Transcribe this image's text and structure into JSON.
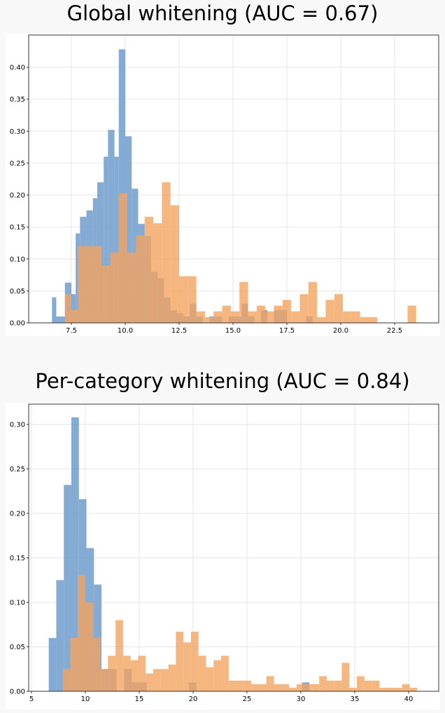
{
  "chart_data": [
    {
      "type": "histogram",
      "title": "Global whitening (AUC = 0.67)",
      "xlabel": "",
      "ylabel": "",
      "xlim": [
        6.0,
        24.0
      ],
      "ylim": [
        0,
        0.45
      ],
      "grid": true,
      "xticks": [
        "7.5",
        "10.0",
        "12.5",
        "15.0",
        "17.5",
        "20.0",
        "22.5"
      ],
      "yticks": [
        "0.00",
        "0.05",
        "0.10",
        "0.15",
        "0.20",
        "0.25",
        "0.30",
        "0.35",
        "0.40"
      ],
      "series": [
        {
          "color": "#6f9ccb",
          "bins": [
            [
              6.6,
              6.8,
              0.04
            ],
            [
              6.8,
              7.0,
              0.01
            ],
            [
              7.0,
              7.2,
              0.01
            ],
            [
              7.2,
              7.5,
              0.063
            ],
            [
              7.5,
              7.7,
              0.045
            ],
            [
              7.7,
              7.9,
              0.14
            ],
            [
              7.9,
              8.2,
              0.166
            ],
            [
              8.2,
              8.5,
              0.176
            ],
            [
              8.5,
              8.7,
              0.195
            ],
            [
              8.7,
              9.0,
              0.22
            ],
            [
              9.0,
              9.2,
              0.26
            ],
            [
              9.2,
              9.5,
              0.302
            ],
            [
              9.5,
              9.7,
              0.26
            ],
            [
              9.7,
              10.0,
              0.428
            ],
            [
              10.0,
              10.3,
              0.292
            ],
            [
              10.3,
              10.6,
              0.21
            ],
            [
              10.6,
              10.9,
              0.155
            ],
            [
              10.9,
              11.2,
              0.136
            ],
            [
              11.2,
              11.5,
              0.08
            ],
            [
              11.5,
              11.8,
              0.07
            ],
            [
              11.8,
              12.1,
              0.04
            ],
            [
              12.1,
              12.4,
              0.02
            ],
            [
              12.4,
              12.7,
              0.015
            ],
            [
              12.7,
              13.0,
              0.01
            ],
            [
              13.0,
              13.3,
              0.03
            ],
            [
              13.3,
              13.6,
              0.01
            ],
            [
              13.9,
              14.2,
              0.01
            ],
            [
              14.2,
              14.5,
              0.01
            ],
            [
              14.8,
              15.1,
              0.01
            ],
            [
              15.1,
              15.4,
              0.01
            ],
            [
              15.4,
              15.7,
              0.03
            ],
            [
              15.7,
              16.0,
              0.01
            ],
            [
              16.3,
              16.6,
              0.02
            ],
            [
              16.9,
              17.2,
              0.02
            ],
            [
              17.2,
              17.5,
              0.02
            ],
            [
              18.4,
              18.7,
              0.01
            ]
          ]
        },
        {
          "color": "#f4a460",
          "bins": [
            [
              7.2,
              7.5,
              0.045
            ],
            [
              7.5,
              7.8,
              0.02
            ],
            [
              7.8,
              8.2,
              0.12
            ],
            [
              8.2,
              8.5,
              0.12
            ],
            [
              8.5,
              8.9,
              0.12
            ],
            [
              8.9,
              9.3,
              0.09
            ],
            [
              9.3,
              9.7,
              0.11
            ],
            [
              9.7,
              10.1,
              0.203
            ],
            [
              10.1,
              10.5,
              0.11
            ],
            [
              10.5,
              10.9,
              0.137
            ],
            [
              10.9,
              11.3,
              0.166
            ],
            [
              11.3,
              11.7,
              0.156
            ],
            [
              11.7,
              12.1,
              0.22
            ],
            [
              12.1,
              12.5,
              0.184
            ],
            [
              12.5,
              12.9,
              0.073
            ],
            [
              12.9,
              13.3,
              0.073
            ],
            [
              13.3,
              13.7,
              0.018
            ],
            [
              13.7,
              14.1,
              0.009
            ],
            [
              14.1,
              14.5,
              0.018
            ],
            [
              14.5,
              14.9,
              0.027
            ],
            [
              14.9,
              15.3,
              0.018
            ],
            [
              15.3,
              15.7,
              0.064
            ],
            [
              15.7,
              16.1,
              0.018
            ],
            [
              16.1,
              16.5,
              0.027
            ],
            [
              16.5,
              16.9,
              0.018
            ],
            [
              16.9,
              17.3,
              0.027
            ],
            [
              17.3,
              17.7,
              0.036
            ],
            [
              17.7,
              18.1,
              0.018
            ],
            [
              18.1,
              18.5,
              0.045
            ],
            [
              18.5,
              18.9,
              0.064
            ],
            [
              18.9,
              19.3,
              0.009
            ],
            [
              19.3,
              19.7,
              0.036
            ],
            [
              19.7,
              20.1,
              0.045
            ],
            [
              20.1,
              20.5,
              0.018
            ],
            [
              20.5,
              20.9,
              0.018
            ],
            [
              20.9,
              21.3,
              0.009
            ],
            [
              21.3,
              21.7,
              0.009
            ],
            [
              23.1,
              23.5,
              0.027
            ]
          ]
        }
      ]
    },
    {
      "type": "histogram",
      "title": "Per-category whitening (AUC = 0.84)",
      "xlabel": "",
      "ylabel": "",
      "xlim": [
        4.9,
        42.0
      ],
      "ylim": [
        0,
        0.33
      ],
      "grid": true,
      "xticks": [
        "5",
        "10",
        "15",
        "20",
        "25",
        "30",
        "35",
        "40"
      ],
      "yticks": [
        "0.00",
        "0.05",
        "0.10",
        "0.15",
        "0.20",
        "0.25",
        "0.30"
      ],
      "series": [
        {
          "color": "#6f9ccb",
          "bins": [
            [
              6.6,
              7.3,
              0.06
            ],
            [
              7.3,
              8.0,
              0.125
            ],
            [
              8.0,
              8.7,
              0.232
            ],
            [
              8.7,
              9.4,
              0.308
            ],
            [
              9.4,
              10.1,
              0.216
            ],
            [
              10.1,
              10.8,
              0.161
            ],
            [
              10.8,
              11.5,
              0.12
            ],
            [
              11.5,
              12.2,
              0.025
            ],
            [
              12.2,
              12.9,
              0.025
            ],
            [
              13.6,
              14.3,
              0.025
            ],
            [
              14.3,
              15.0,
              0.01
            ],
            [
              15.0,
              15.7,
              0.01
            ],
            [
              19.6,
              20.3,
              0.01
            ],
            [
              30.1,
              30.8,
              0.01
            ]
          ]
        },
        {
          "color": "#f4a460",
          "bins": [
            [
              7.9,
              8.6,
              0.025
            ],
            [
              8.6,
              9.3,
              0.06
            ],
            [
              9.3,
              10.0,
              0.131
            ],
            [
              10.0,
              10.7,
              0.1
            ],
            [
              10.7,
              11.4,
              0.06
            ],
            [
              11.4,
              12.1,
              0.025
            ],
            [
              12.1,
              12.8,
              0.04
            ],
            [
              12.8,
              13.5,
              0.08
            ],
            [
              13.5,
              14.2,
              0.04
            ],
            [
              14.2,
              14.9,
              0.035
            ],
            [
              14.9,
              15.6,
              0.04
            ],
            [
              15.6,
              16.3,
              0.02
            ],
            [
              16.3,
              17.0,
              0.025
            ],
            [
              17.0,
              17.7,
              0.025
            ],
            [
              17.7,
              18.4,
              0.03
            ],
            [
              18.4,
              19.1,
              0.067
            ],
            [
              19.1,
              19.8,
              0.055
            ],
            [
              19.8,
              20.5,
              0.067
            ],
            [
              20.5,
              21.2,
              0.04
            ],
            [
              21.2,
              21.9,
              0.027
            ],
            [
              21.9,
              22.6,
              0.035
            ],
            [
              22.6,
              23.3,
              0.04
            ],
            [
              23.3,
              24.0,
              0.012
            ],
            [
              24.0,
              24.7,
              0.012
            ],
            [
              24.7,
              25.4,
              0.012
            ],
            [
              25.4,
              26.1,
              0.008
            ],
            [
              26.1,
              26.8,
              0.008
            ],
            [
              26.8,
              27.5,
              0.017
            ],
            [
              27.5,
              28.2,
              0.008
            ],
            [
              28.2,
              28.9,
              0.008
            ],
            [
              28.9,
              29.6,
              0.004
            ],
            [
              29.6,
              30.3,
              0.008
            ],
            [
              30.3,
              31.0,
              0.008
            ],
            [
              31.0,
              31.7,
              0.008
            ],
            [
              31.7,
              32.4,
              0.017
            ],
            [
              32.4,
              33.1,
              0.012
            ],
            [
              33.1,
              33.8,
              0.012
            ],
            [
              33.8,
              34.5,
              0.032
            ],
            [
              34.5,
              35.2,
              0.004
            ],
            [
              35.2,
              35.9,
              0.017
            ],
            [
              35.9,
              36.6,
              0.012
            ],
            [
              36.6,
              37.3,
              0.012
            ],
            [
              37.3,
              38.0,
              0.004
            ],
            [
              38.0,
              38.7,
              0.004
            ],
            [
              38.7,
              39.4,
              0.004
            ],
            [
              39.4,
              40.1,
              0.008
            ],
            [
              40.1,
              40.8,
              0.004
            ]
          ]
        }
      ]
    }
  ]
}
